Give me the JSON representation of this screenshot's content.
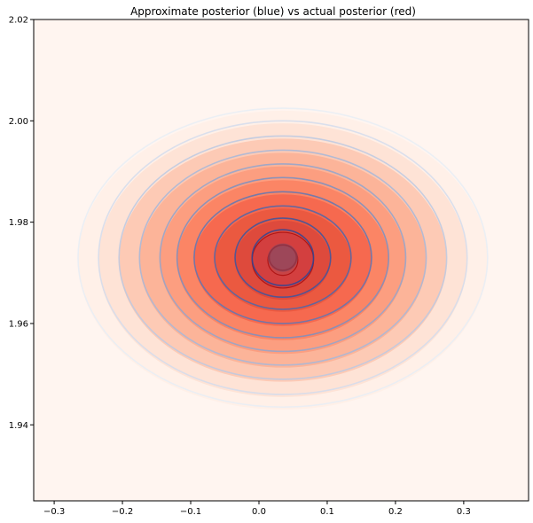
{
  "chart_data": {
    "type": "contour",
    "title": "Approximate posterior (blue) vs actual posterior (red)",
    "xlabel": "",
    "ylabel": "",
    "xlim": [
      -0.33,
      0.395
    ],
    "ylim": [
      1.925,
      2.02
    ],
    "xticks": [
      -0.3,
      -0.2,
      -0.1,
      0.0,
      0.1,
      0.2,
      0.3
    ],
    "xtick_labels": [
      "−0.3",
      "−0.2",
      "−0.1",
      "0.0",
      "0.1",
      "0.2",
      "0.3"
    ],
    "yticks": [
      1.94,
      1.96,
      1.98,
      2.0,
      2.02
    ],
    "ytick_labels": [
      "1.94",
      "1.96",
      "1.98",
      "2.00",
      "2.02"
    ],
    "grid": false,
    "series": [
      {
        "name": "actual posterior",
        "style": "filled contours",
        "colormap": "Reds",
        "center": [
          0.035,
          1.9725
        ],
        "levels_radius_x": [
          0.3,
          0.27,
          0.24,
          0.21,
          0.18,
          0.155,
          0.13,
          0.1,
          0.07,
          0.045,
          0.022
        ],
        "levels_radius_y": [
          0.0295,
          0.027,
          0.024,
          0.0212,
          0.0185,
          0.0158,
          0.013,
          0.0102,
          0.0078,
          0.0055,
          0.003
        ]
      },
      {
        "name": "approximate posterior",
        "style": "line contours",
        "colormap": "Blues",
        "center": [
          0.035,
          1.973
        ],
        "levels_radius_x": [
          0.3,
          0.27,
          0.24,
          0.21,
          0.18,
          0.155,
          0.13,
          0.1,
          0.07,
          0.045,
          0.02
        ],
        "levels_radius_y": [
          0.0295,
          0.027,
          0.024,
          0.0212,
          0.0185,
          0.0158,
          0.013,
          0.0102,
          0.0078,
          0.0055,
          0.0025
        ]
      }
    ],
    "colors": {
      "red_fills": [
        "#fff0e8",
        "#fee3d6",
        "#fdcab5",
        "#fcb499",
        "#fc9e80",
        "#fb8565",
        "#f6694f",
        "#eb5940",
        "#de4a3c",
        "#d33f3f",
        "#c84446"
      ],
      "blue_lines": [
        "#e8edf5",
        "#d3dcec",
        "#bcc9e2",
        "#a7b7d8",
        "#92a4cd",
        "#7a8fc1",
        "#5f77b4",
        "#4d67aa",
        "#3c56a0",
        "#2f4595",
        "#b01010"
      ],
      "outer_background": "#fff5f0"
    }
  }
}
